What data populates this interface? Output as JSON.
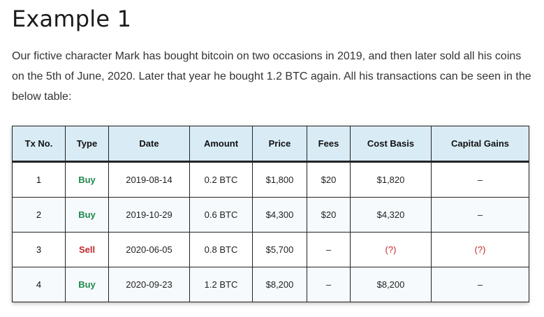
{
  "heading": "Example 1",
  "intro": "Our fictive character Mark has bought bitcoin on two occasions in 2019, and then later sold all his coins on the 5th of June, 2020. Later that year he bought 1.2 BTC again. All his transactions can be seen in the below table:",
  "table": {
    "headers": [
      "Tx No.",
      "Type",
      "Date",
      "Amount",
      "Price",
      "Fees",
      "Cost Basis",
      "Capital Gains"
    ],
    "rows": [
      {
        "tx": "1",
        "type": "Buy",
        "date": "2019-08-14",
        "amount": "0.2 BTC",
        "price": "$1,800",
        "fees": "$20",
        "cost_basis": "$1,820",
        "capital_gains": "–"
      },
      {
        "tx": "2",
        "type": "Buy",
        "date": "2019-10-29",
        "amount": "0.6 BTC",
        "price": "$4,300",
        "fees": "$20",
        "cost_basis": "$4,320",
        "capital_gains": "–"
      },
      {
        "tx": "3",
        "type": "Sell",
        "date": "2020-06-05",
        "amount": "0.8 BTC",
        "price": "$5,700",
        "fees": "–",
        "cost_basis": "(?)",
        "capital_gains": "(?)"
      },
      {
        "tx": "4",
        "type": "Buy",
        "date": "2020-09-23",
        "amount": "1.2 BTC",
        "price": "$8,200",
        "fees": "–",
        "cost_basis": "$8,200",
        "capital_gains": "–"
      }
    ]
  },
  "colors": {
    "buy": "#1e8a4c",
    "sell": "#c0282b",
    "header_bg": "#d9ecf5"
  }
}
